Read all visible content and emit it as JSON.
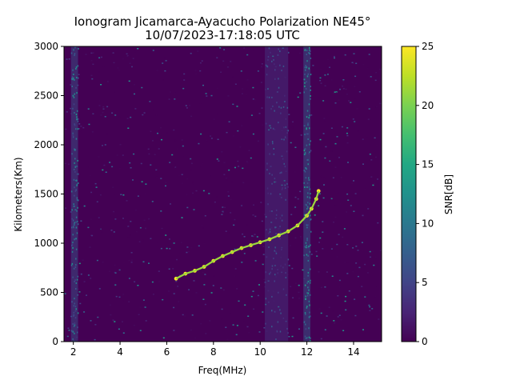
{
  "chart_data": {
    "type": "heatmap",
    "title": "Ionogram Jicamarca-Ayacucho Polarization NE45°",
    "subtitle": "10/07/2023-17:18:05 UTC",
    "xlabel": "Freq(MHz)",
    "ylabel": "Kilometers(Km)",
    "colorbar_label": "SNR[dB]",
    "xlim": [
      1.6,
      15.2
    ],
    "ylim": [
      0,
      3000
    ],
    "x_ticks": [
      2,
      4,
      6,
      8,
      10,
      12,
      14
    ],
    "y_ticks": [
      0,
      500,
      1000,
      1500,
      2000,
      2500,
      3000
    ],
    "colorbar_range": [
      0,
      25
    ],
    "colorbar_ticks": [
      0,
      5,
      10,
      15,
      20,
      25
    ],
    "colormap": "viridis",
    "background_color": "#440154",
    "trace": {
      "name": "",
      "snr_db": 25,
      "points": [
        {
          "freq": 6.4,
          "km": 640
        },
        {
          "freq": 6.8,
          "km": 690
        },
        {
          "freq": 7.2,
          "km": 720
        },
        {
          "freq": 7.6,
          "km": 760
        },
        {
          "freq": 8.0,
          "km": 820
        },
        {
          "freq": 8.4,
          "km": 870
        },
        {
          "freq": 8.8,
          "km": 910
        },
        {
          "freq": 9.2,
          "km": 950
        },
        {
          "freq": 9.6,
          "km": 980
        },
        {
          "freq": 10.0,
          "km": 1010
        },
        {
          "freq": 10.4,
          "km": 1040
        },
        {
          "freq": 10.8,
          "km": 1080
        },
        {
          "freq": 11.2,
          "km": 1120
        },
        {
          "freq": 11.6,
          "km": 1180
        },
        {
          "freq": 12.0,
          "km": 1280
        },
        {
          "freq": 12.2,
          "km": 1350
        },
        {
          "freq": 12.4,
          "km": 1450
        },
        {
          "freq": 12.5,
          "km": 1530
        }
      ]
    },
    "interference_bands": [
      {
        "freq_start": 10.2,
        "freq_end": 11.2,
        "snr_db": 4
      },
      {
        "freq_start": 11.85,
        "freq_end": 12.15,
        "snr_db": 8
      },
      {
        "freq_start": 1.9,
        "freq_end": 2.2,
        "snr_db": 7
      }
    ]
  }
}
